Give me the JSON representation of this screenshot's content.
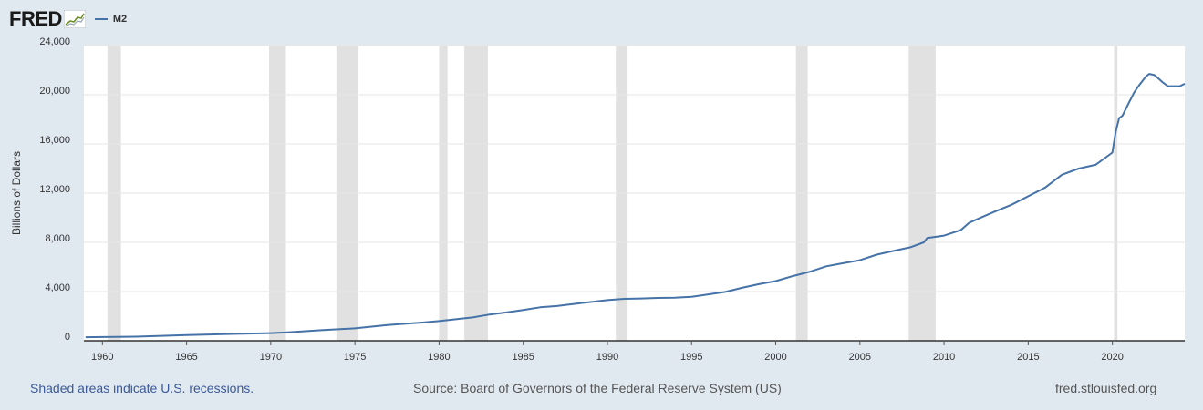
{
  "header": {
    "logo_text": "FRED",
    "legend_label": "M2"
  },
  "colors": {
    "series": "#4572a7",
    "recession": "#e1e1e1",
    "plot_bg": "#ffffff",
    "page_bg": "#e1e9f0"
  },
  "footer": {
    "note": "Shaded areas indicate U.S. recessions.",
    "source": "Source: Board of Governors of the Federal Reserve System (US)",
    "site": "fred.stlouisfed.org"
  },
  "chart_data": {
    "type": "line",
    "ylabel": "Billions of Dollars",
    "xlim": [
      1958.9,
      2024.3
    ],
    "ylim": [
      0,
      24000
    ],
    "yticks": [
      0,
      4000,
      8000,
      12000,
      16000,
      20000,
      24000
    ],
    "ytick_labels": [
      "0",
      "4,000",
      "8,000",
      "12,000",
      "16,000",
      "20,000",
      "24,000"
    ],
    "xticks": [
      1960,
      1965,
      1970,
      1975,
      1980,
      1985,
      1990,
      1995,
      2000,
      2005,
      2010,
      2015,
      2020
    ],
    "xtick_labels": [
      "1960",
      "1965",
      "1970",
      "1975",
      "1980",
      "1985",
      "1990",
      "1995",
      "2000",
      "2005",
      "2010",
      "2015",
      "2020"
    ],
    "grid": true,
    "legend_position": "top-left",
    "recessions": [
      [
        1960.3,
        1961.1
      ],
      [
        1969.9,
        1970.9
      ],
      [
        1973.9,
        1975.2
      ],
      [
        1980.0,
        1980.5
      ],
      [
        1981.5,
        1982.9
      ],
      [
        1990.5,
        1991.2
      ],
      [
        2001.2,
        2001.9
      ],
      [
        2007.9,
        2009.5
      ],
      [
        2020.1,
        2020.3
      ]
    ],
    "series": [
      {
        "name": "M2",
        "x": [
          1959.0,
          1960.0,
          1962.0,
          1965.0,
          1968.0,
          1970.0,
          1971.0,
          1973.0,
          1975.0,
          1977.0,
          1979.0,
          1980.0,
          1981.0,
          1982.0,
          1983.0,
          1984.0,
          1985.0,
          1986.0,
          1987.0,
          1988.0,
          1989.0,
          1990.0,
          1991.0,
          1992.0,
          1993.0,
          1994.0,
          1995.0,
          1996.0,
          1997.0,
          1998.0,
          1999.0,
          2000.0,
          2001.0,
          2002.0,
          2003.0,
          2004.0,
          2005.0,
          2006.0,
          2007.0,
          2008.0,
          2008.8,
          2009.0,
          2010.0,
          2011.0,
          2011.5,
          2012.0,
          2013.0,
          2014.0,
          2015.0,
          2016.0,
          2017.0,
          2018.0,
          2019.0,
          2020.0,
          2020.2,
          2020.4,
          2020.6,
          2021.0,
          2021.3,
          2021.6,
          2022.0,
          2022.2,
          2022.5,
          2023.0,
          2023.3,
          2023.6,
          2024.0,
          2024.3
        ],
        "y": [
          290,
          300,
          330,
          460,
          560,
          620,
          680,
          860,
          1010,
          1290,
          1480,
          1600,
          1750,
          1900,
          2130,
          2300,
          2500,
          2720,
          2820,
          2990,
          3150,
          3300,
          3410,
          3440,
          3480,
          3500,
          3570,
          3770,
          3970,
          4300,
          4600,
          4850,
          5250,
          5600,
          6050,
          6300,
          6550,
          7000,
          7300,
          7600,
          8000,
          8350,
          8550,
          9000,
          9600,
          9900,
          10500,
          11050,
          11750,
          12450,
          13500,
          14000,
          14300,
          15300,
          17000,
          18100,
          18300,
          19400,
          20200,
          20800,
          21500,
          21700,
          21600,
          21000,
          20700,
          20700,
          20700,
          20900
        ]
      }
    ]
  }
}
